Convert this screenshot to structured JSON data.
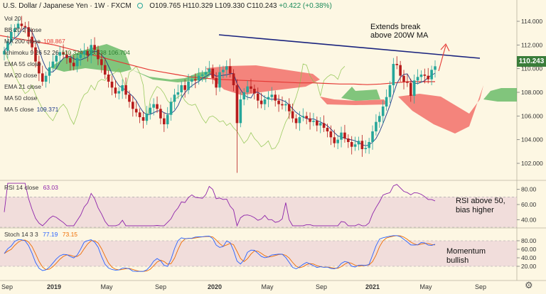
{
  "header": {
    "symbol": "U.S. Dollar / Japanese Yen",
    "interval": "1W",
    "exchange": "FXCM",
    "ohlc": {
      "open": "O109.765",
      "high": "H110.329",
      "low": "L109.330",
      "close": "C110.243",
      "change": "+0.422 (+0.38%)"
    }
  },
  "indicators_main": [
    {
      "label": "Vol 20",
      "value": ""
    },
    {
      "label": "BB 20 2 close",
      "value": ""
    },
    {
      "label": "MA 200 close",
      "value": "108.867"
    },
    {
      "label": "Ichimoku 9 26 52 26",
      "value": "110.324  105.538  106.704"
    },
    {
      "label": "EMA 55 close",
      "value": ""
    },
    {
      "label": "MA 20 close",
      "value": ""
    },
    {
      "label": "EMA 21 close",
      "value": ""
    },
    {
      "label": "MA 50 close",
      "value": ""
    },
    {
      "label": "MA 5 close",
      "value": "109.371"
    }
  ],
  "annotations": {
    "main": "Extends break\nabove 200W MA",
    "rsi": "RSI above 50,\nbias higher",
    "stoch": "Momentum\nbullish"
  },
  "price_badge": "110.243",
  "rsi_panel": {
    "label": "RSI 14 close",
    "value": "63.03"
  },
  "stoch_panel": {
    "label": "Stoch 14 3 3",
    "k": "77.19",
    "d": "73.15"
  },
  "x_axis_labels": [
    "Sep",
    "2019",
    "May",
    "Sep",
    "2020",
    "May",
    "Sep",
    "2021",
    "May",
    "Sep"
  ],
  "colors": {
    "background": "#fdf7e3",
    "candle_up": "#26a69a",
    "candle_down": "#b71c1c",
    "ma200": "#e53935",
    "ma5": "#1e3a8a",
    "trendline": "#1a237e",
    "cloud_bull": "#4caf50",
    "cloud_bear": "#ef5350",
    "lagging": "#8bc34a",
    "rsi": "#8e24aa",
    "stoch_k": "#2962ff",
    "stoch_d": "#ef6c00",
    "band": "#e7c9d6"
  },
  "chart_data": [
    {
      "type": "candlestick",
      "title": "U.S. Dollar / Japanese Yen",
      "ylim": [
        100.8,
        115.2
      ],
      "y_ticks": [
        102.0,
        104.0,
        106.0,
        108.0,
        110.0,
        112.0,
        114.0
      ],
      "closes": [
        111.5,
        112.3,
        113.1,
        113.4,
        113.8,
        113.6,
        113.5,
        112.7,
        111.8,
        110.6,
        109.6,
        108.9,
        109.4,
        110.1,
        110.6,
        111.1,
        111.4,
        111.2,
        110.9,
        110.5,
        110.2,
        110.9,
        111.2,
        111.5,
        111.1,
        112.0,
        111.6,
        110.8,
        110.3,
        109.5,
        108.9,
        108.4,
        107.9,
        108.1,
        108.6,
        107.8,
        107.2,
        106.6,
        106.3,
        105.9,
        105.6,
        106.2,
        106.7,
        107.0,
        106.6,
        105.8,
        105.3,
        106.1,
        107.2,
        107.8,
        108.0,
        108.6,
        108.2,
        108.9,
        109.1,
        109.0,
        109.4,
        109.5,
        109.7,
        110.0,
        109.2,
        108.4,
        109.7,
        109.9,
        110.2,
        109.6,
        108.6,
        105.4,
        107.4,
        108.0,
        108.5,
        108.3,
        107.9,
        107.3,
        107.0,
        107.4,
        107.6,
        107.8,
        107.3,
        107.0,
        106.9,
        107.0,
        106.4,
        105.8,
        105.4,
        105.9,
        106.0,
        105.8,
        105.5,
        105.6,
        105.2,
        105.4,
        105.0,
        104.7,
        104.2,
        103.7,
        104.0,
        104.6,
        104.1,
        103.8,
        103.4,
        103.6,
        103.9,
        103.2,
        103.3,
        103.8,
        104.7,
        105.5,
        106.0,
        106.8,
        107.6,
        108.6,
        110.4,
        110.3,
        109.4,
        108.9,
        108.8,
        107.7,
        109.0,
        109.3,
        109.5,
        109.4,
        109.1,
        109.9,
        110.2
      ],
      "ma200_values": [
        112.8,
        112.6,
        112.4,
        112.2,
        112.0,
        111.7,
        111.4,
        111.1,
        110.8,
        110.5,
        110.2,
        109.9,
        109.7,
        109.5,
        109.3,
        109.2,
        109.1,
        109.05,
        109.0,
        108.95,
        108.9,
        108.85,
        108.8,
        108.8,
        108.75,
        108.7,
        108.7,
        108.65,
        108.7,
        108.8,
        108.9,
        108.9,
        108.9
      ],
      "rsi": {
        "ylim": [
          30,
          90
        ],
        "y_ticks": [
          40.0,
          60.0,
          80.0
        ],
        "band": [
          30,
          70
        ],
        "latest": 63.03
      },
      "stochastic": {
        "ylim": [
          0,
          100
        ],
        "y_ticks": [
          20.0,
          40.0,
          60.0,
          80.0
        ],
        "band": [
          20,
          80
        ],
        "k_latest": 77.19,
        "d_latest": 73.15
      }
    }
  ]
}
